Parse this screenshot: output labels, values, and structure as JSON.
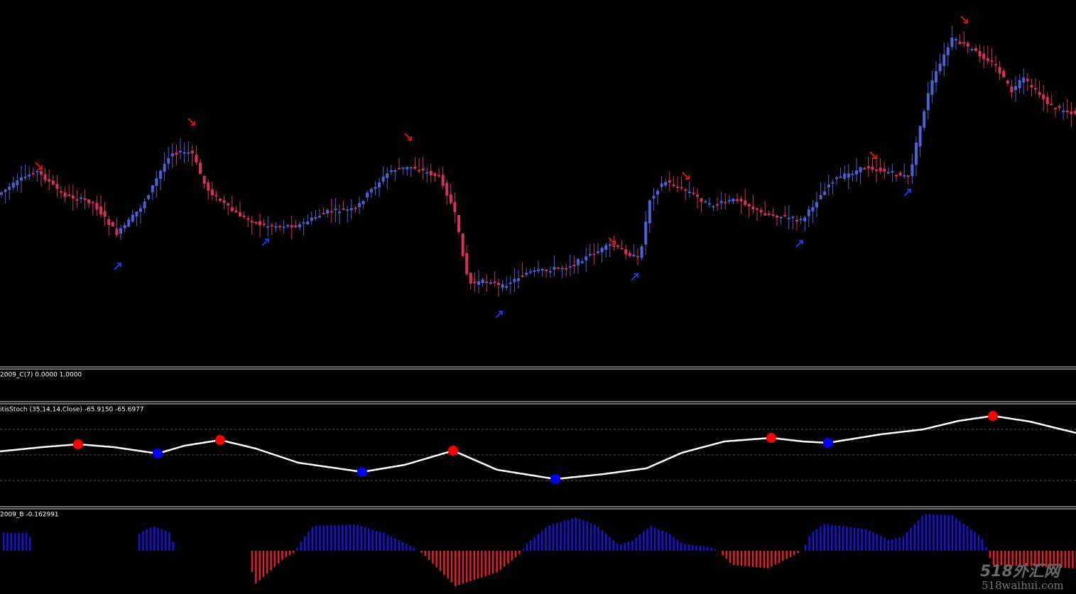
{
  "indicators": {
    "panel_1": "2009_C(7) 0.0000 1.0000",
    "panel_2": "itisStoch (35,14,14,Close) -65.9150 -65.6977",
    "panel_3": "2009_B -0.162991"
  },
  "watermark": {
    "logo": "518外汇网",
    "site": "518waihui.com"
  }
}
